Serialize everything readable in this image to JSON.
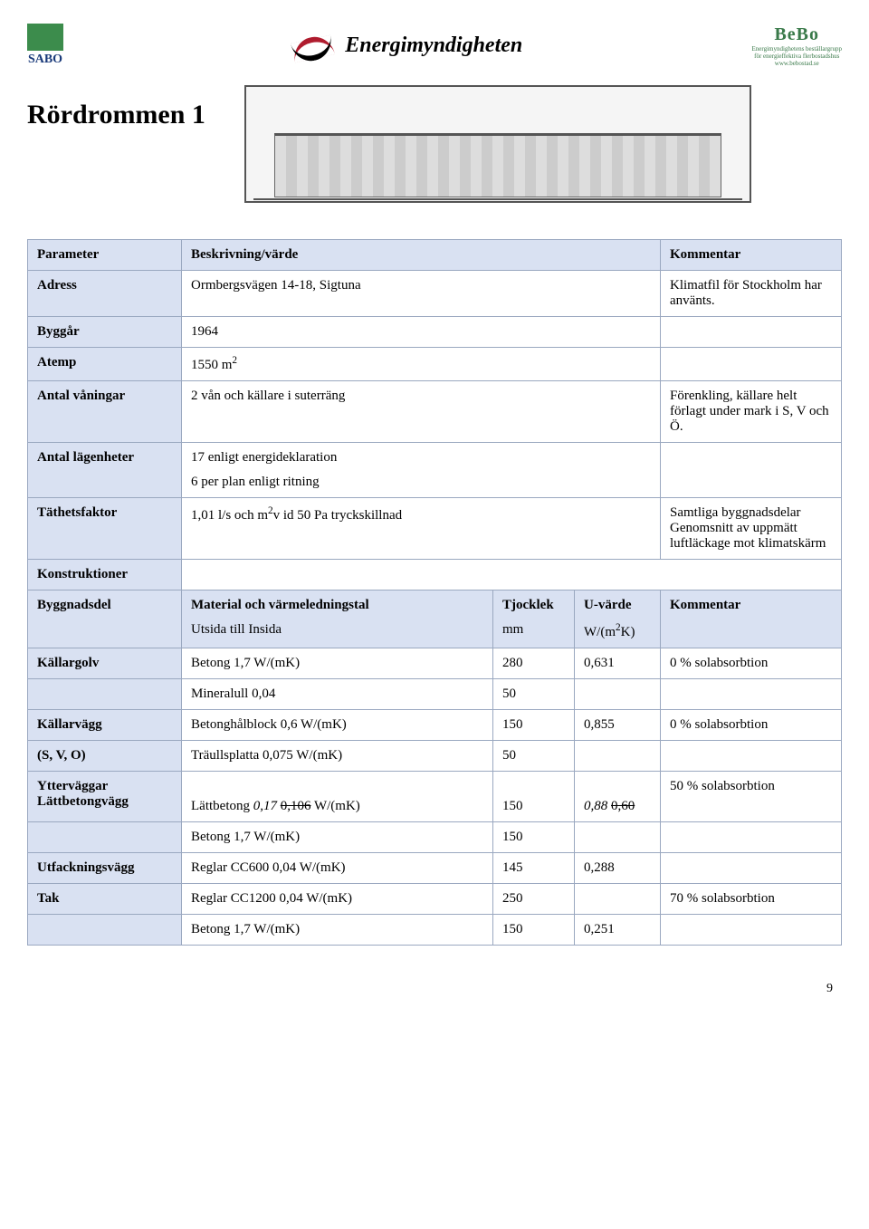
{
  "logos": {
    "sabo": "SABO",
    "energi": "Energimyndigheten",
    "bebo": "BeBo",
    "bebo_sub1": "Energimyndighetens beställargrupp",
    "bebo_sub2": "för energieffektiva flerbostadshus",
    "bebo_sub3": "www.bebostad.se"
  },
  "title": "Rördrommen 1",
  "t1": {
    "h_param": "Parameter",
    "h_val": "Beskrivning/värde",
    "h_com": "Kommentar",
    "r_adress": {
      "p": "Adress",
      "v": "Ormbergsvägen 14-18, Sigtuna",
      "c": "Klimatfil för Stockholm har använts."
    },
    "r_byggar": {
      "p": "Byggår",
      "v": "1964",
      "c": ""
    },
    "r_atemp": {
      "p": "Atemp",
      "v_html": "1550 m<sup>2</sup>",
      "c": ""
    },
    "r_van": {
      "p": "Antal våningar",
      "v": "2 vån och källare i suterräng",
      "c": "Förenkling, källare helt förlagt under mark i S, V och Ö."
    },
    "r_lgh": {
      "p": "Antal lägenheter",
      "v1": "17 enligt energideklaration",
      "v2": "6 per plan enligt ritning",
      "c": ""
    },
    "r_tat": {
      "p": "Täthetsfaktor",
      "v_html": "1,01 l/s och m<sup>2</sup>v id 50 Pa tryckskillnad",
      "c": "Samtliga byggnadsdelar Genomsnitt av uppmätt luftläckage mot klimatskärm"
    }
  },
  "subhead": "Konstruktioner",
  "t2": {
    "h_byggdel": "Byggnadsdel",
    "h_mat1": "Material och värmeledningstal",
    "h_mat2": "Utsida till Insida",
    "h_tj": "Tjocklek",
    "h_tj_u": "mm",
    "h_uv": "U-värde",
    "h_uv_u_html": "W/(m<sup>2</sup>K)",
    "h_com": "Kommentar",
    "rows": {
      "kallargolv": {
        "name": "Källargolv",
        "mat": "Betong 1,7 W/(mK)",
        "tj": "280",
        "uv": "0,631",
        "com": "0 % solabsorbtion"
      },
      "kallargolv2": {
        "name": "",
        "mat": "Mineralull 0,04",
        "tj": "50",
        "uv": "",
        "com": ""
      },
      "kallarvagg": {
        "name": "Källarvägg",
        "mat": "Betonghålblock 0,6 W/(mK)",
        "tj": "150",
        "uv": "0,855",
        "com": "0 % solabsorbtion"
      },
      "kallarvagg2": {
        "name": "(S, V, O)",
        "mat": "Träullsplatta 0,075 W/(mK)",
        "tj": "50",
        "uv": "",
        "com": ""
      },
      "ytter": {
        "name": "Ytterväggar Lättbetongvägg",
        "mat_pre": "Lättbetong ",
        "mat_i1": "0,17",
        "mat_s1": "0,106",
        "mat_post": " W/(mK)",
        "tj": "150",
        "uv_i": "0,88",
        "uv_s": "0,60",
        "com": "50 % solabsorbtion"
      },
      "ytter2": {
        "name": "",
        "mat": "Betong 1,7 W/(mK)",
        "tj": "150",
        "uv": "",
        "com": ""
      },
      "utfack": {
        "name": "Utfackningsvägg",
        "mat": "Reglar CC600 0,04 W/(mK)",
        "tj": "145",
        "uv": "0,288",
        "com": ""
      },
      "tak": {
        "name": "Tak",
        "mat": "Reglar CC1200 0,04 W/(mK)",
        "tj": "250",
        "uv": "",
        "com": "70 % solabsorbtion"
      },
      "tak2": {
        "name": "",
        "mat": "Betong 1,7 W/(mK)",
        "tj": "150",
        "uv": "0,251",
        "com": ""
      }
    }
  },
  "page_num": "9"
}
